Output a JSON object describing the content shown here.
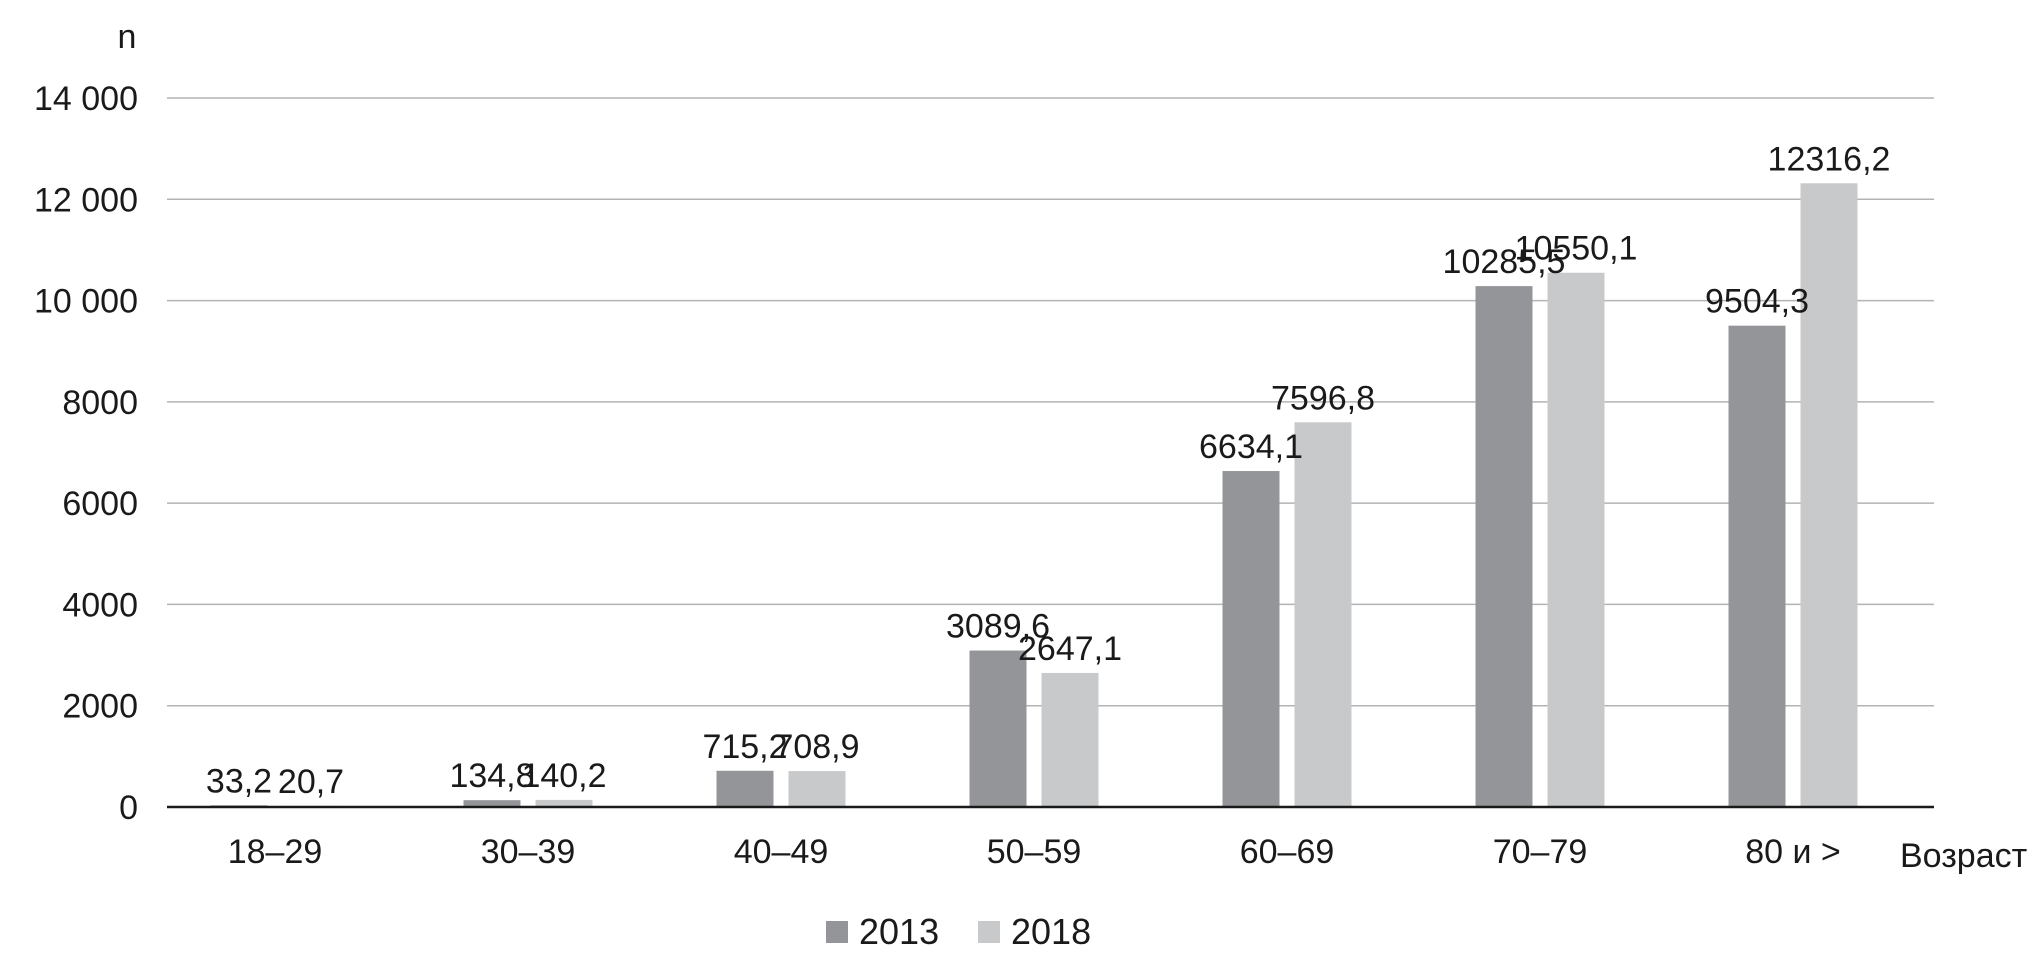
{
  "chart_data": {
    "type": "bar",
    "ylabel": "n",
    "xlabel": "Возраст",
    "ylim": [
      0,
      14000
    ],
    "yticks": [
      0,
      2000,
      4000,
      6000,
      8000,
      10000,
      12000,
      14000
    ],
    "ytick_labels": [
      "0",
      "2000",
      "4000",
      "6000",
      "8000",
      "10 000",
      "12 000",
      "14 000"
    ],
    "grid": true,
    "legend_position": "bottom-center",
    "categories": [
      "18–29",
      "30–39",
      "40–49",
      "50–59",
      "60–69",
      "70–79",
      "80 и >"
    ],
    "series": [
      {
        "name": "2013",
        "color": "#939598",
        "values": [
          33.2,
          134.8,
          715.2,
          3089.6,
          6634.1,
          10285.5,
          9504.3
        ],
        "labels": [
          "33,2",
          "134,8",
          "715,2",
          "3089,6",
          "6634,1",
          "10285,5",
          "9504,3"
        ]
      },
      {
        "name": "2018",
        "color": "#c8c9cb",
        "values": [
          20.7,
          140.2,
          708.9,
          2647.1,
          7596.8,
          10550.1,
          12316.2
        ],
        "labels": [
          "20,7",
          "140,2",
          "708,9",
          "2647,1",
          "7596,8",
          "10550,1",
          "12316,2"
        ]
      }
    ]
  }
}
